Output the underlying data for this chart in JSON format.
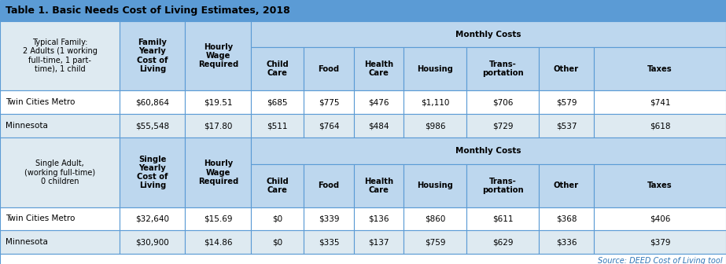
{
  "title": "Table 1. Basic Needs Cost of Living Estimates, 2018",
  "title_bg": "#5b9bd5",
  "title_color": "#000000",
  "header_bg": "#bdd7ee",
  "subheader_bg": "#deeaf1",
  "data_row_bg": "#ffffff",
  "alt_row_bg": "#f2f9ff",
  "border_color": "#5b9bd5",
  "source_text": "Source: DEED Cost of Living tool",
  "source_color": "#2e75b6",
  "family_desc": "Typical Family:\n2 Adults (1 working\nfull-time, 1 part-\ntime), 1 child",
  "single_desc": "Single Adult,\n(working full-time)\n0 children",
  "family_header2": "Family\nYearly\nCost of\nLiving",
  "single_header2": "Single\nYearly\nCost of\nLiving",
  "hourly_label": "Hourly\nWage\nRequired",
  "monthly_label": "Monthly Costs",
  "child_care_label": "Child\nCare",
  "food_label": "Food",
  "health_care_label": "Health\nCare",
  "housing_label": "Housing",
  "trans_label": "Trans-\nportation",
  "other_label": "Other",
  "taxes_label": "Taxes",
  "family_rows": [
    [
      "Twin Cities Metro",
      "$60,864",
      "$19.51",
      "$685",
      "$775",
      "$476",
      "$1,110",
      "$706",
      "$579",
      "$741"
    ],
    [
      "Minnesota",
      "$55,548",
      "$17.80",
      "$511",
      "$764",
      "$484",
      "$986",
      "$729",
      "$537",
      "$618"
    ]
  ],
  "single_rows": [
    [
      "Twin Cities Metro",
      "$32,640",
      "$15.69",
      "$0",
      "$339",
      "$136",
      "$860",
      "$611",
      "$368",
      "$406"
    ],
    [
      "Minnesota",
      "$30,900",
      "$14.86",
      "$0",
      "$335",
      "$137",
      "$759",
      "$629",
      "$336",
      "$379"
    ]
  ]
}
